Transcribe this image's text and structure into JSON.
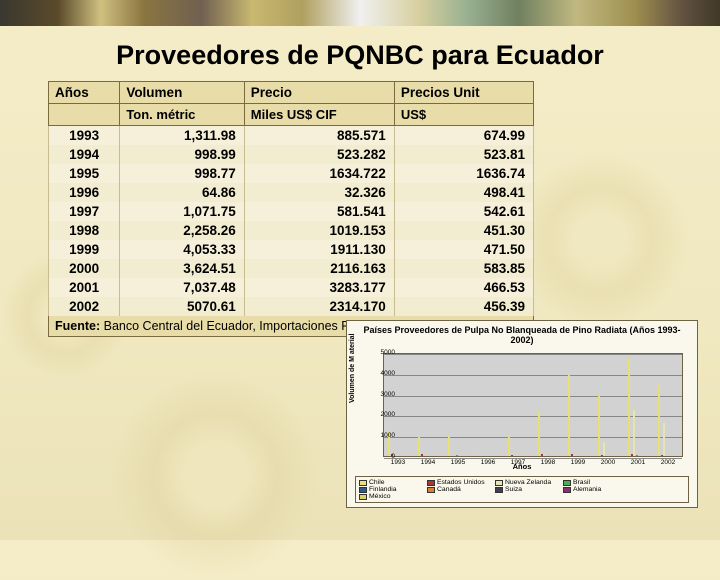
{
  "title": "Proveedores de PQNBC para Ecuador",
  "table": {
    "headers_row1": [
      "Años",
      "Volumen",
      "Precio",
      "Precios Unit"
    ],
    "headers_row2": [
      "",
      "Ton. métric",
      "Miles US$ CIF",
      "US$"
    ],
    "rows": [
      [
        "1993",
        "1,311.98",
        "885.571",
        "674.99"
      ],
      [
        "1994",
        "998.99",
        "523.282",
        "523.81"
      ],
      [
        "1995",
        "998.77",
        "1634.722",
        "1636.74"
      ],
      [
        "1996",
        "64.86",
        "32.326",
        "498.41"
      ],
      [
        "1997",
        "1,071.75",
        "581.541",
        "542.61"
      ],
      [
        "1998",
        "2,258.26",
        "1019.153",
        "451.30"
      ],
      [
        "1999",
        "4,053.33",
        "1911.130",
        "471.50"
      ],
      [
        "2000",
        "3,624.51",
        "2116.163",
        "583.85"
      ],
      [
        "2001",
        "7,037.48",
        "3283.177",
        "466.53"
      ],
      [
        "2002",
        "5070.61",
        "2314.170",
        "456.39"
      ]
    ],
    "fuente_label": "Fuente:",
    "fuente_text": "Banco Central del Ecuador, Importaciones PQNBC"
  },
  "chart": {
    "title": "Países Proveedores de Pulpa No Blanqueada de Pino Radiata (Años 1993-2002)",
    "ylabel": "Volumen de M aterial",
    "xlabel": "Años",
    "ymax": 5000,
    "yticks": [
      0,
      1000,
      2000,
      3000,
      4000,
      5000
    ],
    "years": [
      "1993",
      "1994",
      "1995",
      "1996",
      "1997",
      "1998",
      "1999",
      "2000",
      "2001",
      "2002"
    ],
    "series": [
      {
        "name": "Chile",
        "color": "#e8e070"
      },
      {
        "name": "Estados Unidos",
        "color": "#a83838"
      },
      {
        "name": "Nueva Zelanda",
        "color": "#e8e4b0"
      },
      {
        "name": "Brasil",
        "color": "#48b050"
      },
      {
        "name": "Finlandia",
        "color": "#305888"
      },
      {
        "name": "Canadá",
        "color": "#d88030"
      },
      {
        "name": "Suiza",
        "color": "#404050"
      },
      {
        "name": "Alemania",
        "color": "#883070"
      },
      {
        "name": "México",
        "color": "#d8d060"
      }
    ],
    "data": {
      "1993": {
        "Chile": 1200,
        "Estados Unidos": 100
      },
      "1994": {
        "Chile": 900,
        "Estados Unidos": 80
      },
      "1995": {
        "Chile": 950,
        "Brasil": 50
      },
      "1996": {
        "Chile": 60
      },
      "1997": {
        "Chile": 1000,
        "Estados Unidos": 60
      },
      "1998": {
        "Chile": 2100,
        "Estados Unidos": 120,
        "Nueva Zelanda": 30
      },
      "1999": {
        "Chile": 3900,
        "Estados Unidos": 120,
        "Nueva Zelanda": 30
      },
      "2000": {
        "Chile": 2900,
        "Nueva Zelanda": 650,
        "Estados Unidos": 70
      },
      "2001": {
        "Chile": 4700,
        "Nueva Zelanda": 2200,
        "Estados Unidos": 100,
        "Brasil": 40
      },
      "2002": {
        "Chile": 3400,
        "Nueva Zelanda": 1600,
        "Estados Unidos": 60
      }
    },
    "background_color": "#d2d2d2",
    "grid_color": "#888888"
  }
}
